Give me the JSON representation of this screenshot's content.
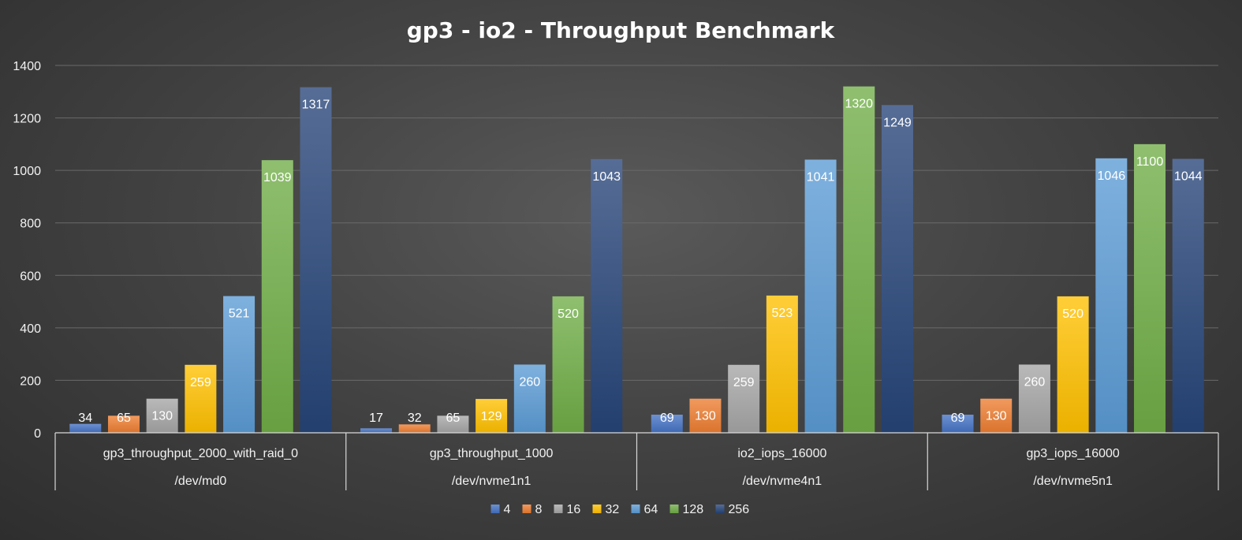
{
  "chart_data": {
    "type": "bar",
    "title": "gp3 - io2 - Throughput Benchmark",
    "xlabel": "",
    "ylabel": "",
    "ylim": [
      0,
      1400
    ],
    "yticks": [
      "0",
      "200",
      "400",
      "600",
      "800",
      "1000",
      "1200",
      "1400"
    ],
    "ytick_values": [
      0,
      200,
      400,
      600,
      800,
      1000,
      1200,
      1400
    ],
    "grid": true,
    "legend_position": "bottom",
    "categories": [
      {
        "name": "gp3_throughput_2000_with_raid_0",
        "device": "/dev/md0"
      },
      {
        "name": "gp3_throughput_1000",
        "device": "/dev/nvme1n1"
      },
      {
        "name": "io2_iops_16000",
        "device": "/dev/nvme4n1"
      },
      {
        "name": "gp3_iops_16000",
        "device": "/dev/nvme5n1"
      }
    ],
    "series": [
      {
        "name": "4",
        "color": "#4472c4",
        "values": [
          34,
          17,
          69,
          69
        ],
        "labels": [
          "34",
          "17",
          "69",
          "69"
        ]
      },
      {
        "name": "8",
        "color": "#ed7d31",
        "values": [
          65,
          32,
          130,
          130
        ],
        "labels": [
          "65",
          "32",
          "130",
          "130"
        ]
      },
      {
        "name": "16",
        "color": "#a5a5a5",
        "values": [
          130,
          65,
          259,
          260
        ],
        "labels": [
          "130",
          "65",
          "259",
          "260"
        ]
      },
      {
        "name": "32",
        "color": "#ffc000",
        "values": [
          259,
          129,
          523,
          520
        ],
        "labels": [
          "259",
          "129",
          "523",
          "520"
        ]
      },
      {
        "name": "64",
        "color": "#5b9bd5",
        "values": [
          521,
          260,
          1041,
          1046
        ],
        "labels": [
          "521",
          "260",
          "1041",
          "1046"
        ]
      },
      {
        "name": "128",
        "color": "#70ad47",
        "values": [
          1039,
          520,
          1320,
          1100
        ],
        "labels": [
          "1039",
          "520",
          "1320",
          "1100"
        ]
      },
      {
        "name": "256",
        "color": "#264478",
        "values": [
          1317,
          1043,
          1249,
          1044
        ],
        "labels": [
          "1317",
          "1043",
          "1249",
          "1044"
        ]
      }
    ]
  }
}
